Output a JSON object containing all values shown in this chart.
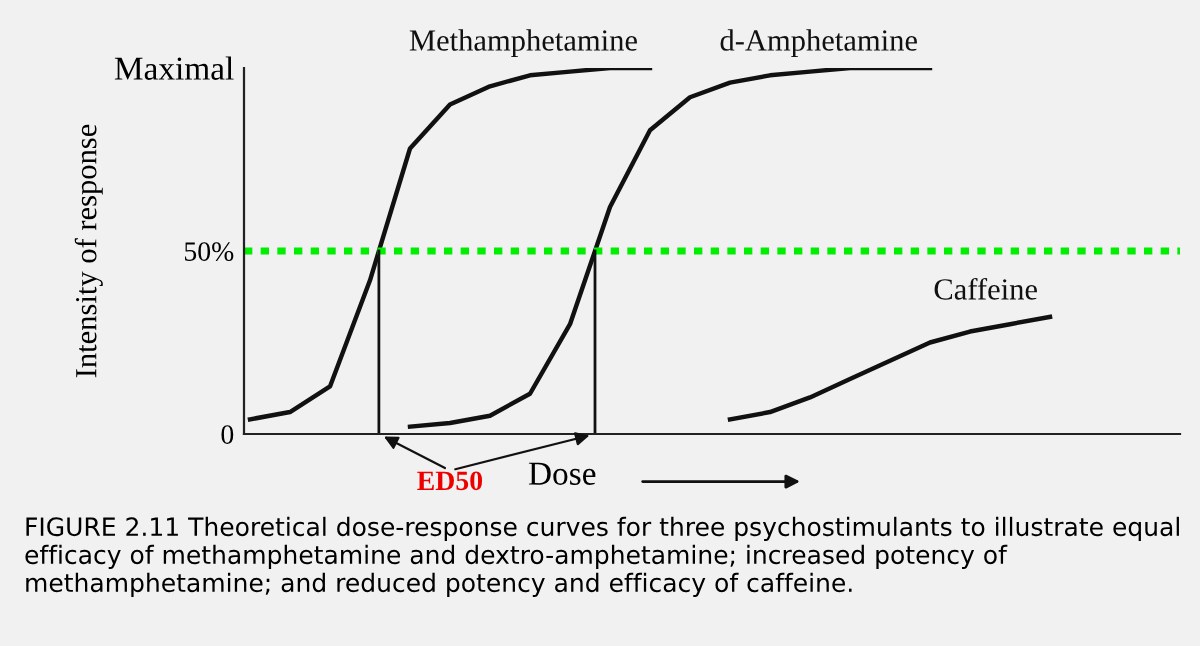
{
  "chart_data": {
    "type": "line",
    "categories": [
      null,
      null,
      null,
      null,
      null,
      null,
      null,
      null,
      null,
      null,
      null,
      null,
      null,
      null,
      null,
      null,
      null,
      null,
      null,
      null,
      null,
      null,
      null,
      null
    ],
    "series": [
      {
        "name": "Methamphetamine",
        "color": "#111111",
        "values": [
          4,
          6,
          13,
          42,
          78,
          90,
          95,
          98,
          99,
          100,
          100,
          null,
          null,
          null,
          null,
          null,
          null,
          null,
          null,
          null,
          null,
          null,
          null,
          null
        ]
      },
      {
        "name": "d-Amphetamine",
        "color": "#111111",
        "values": [
          null,
          null,
          null,
          null,
          2,
          3,
          5,
          11,
          30,
          62,
          83,
          92,
          96,
          98,
          99,
          100,
          100,
          100,
          null,
          null,
          null,
          null,
          null,
          null
        ]
      },
      {
        "name": "Caffeine",
        "color": "#111111",
        "values": [
          null,
          null,
          null,
          null,
          null,
          null,
          null,
          null,
          null,
          null,
          null,
          null,
          4,
          6,
          10,
          15,
          20,
          25,
          28,
          30,
          32,
          null,
          null,
          null
        ]
      }
    ],
    "ylabel": "Intensity of response",
    "xlabel": "Dose",
    "ylim": [
      0,
      100
    ],
    "yticks": [
      0,
      {
        "value": 50,
        "label": "50%"
      },
      {
        "value": 100,
        "label": "Maximal"
      }
    ],
    "ref_lines": [
      {
        "axis": "y",
        "value": 50,
        "color": "#00ee00",
        "line_style": "dotted"
      }
    ],
    "annotations": [
      "ED50",
      "FIGURE 2.11 Theoretical dose-response curves for three psychostimulants to illustrate equal efficacy of methamphetamine and dextro-amphetamine; increased potency of methamphetamine; and reduced potency and efficacy of caffeine."
    ],
    "grid": false,
    "marker": "none",
    "line_style": "solid"
  }
}
